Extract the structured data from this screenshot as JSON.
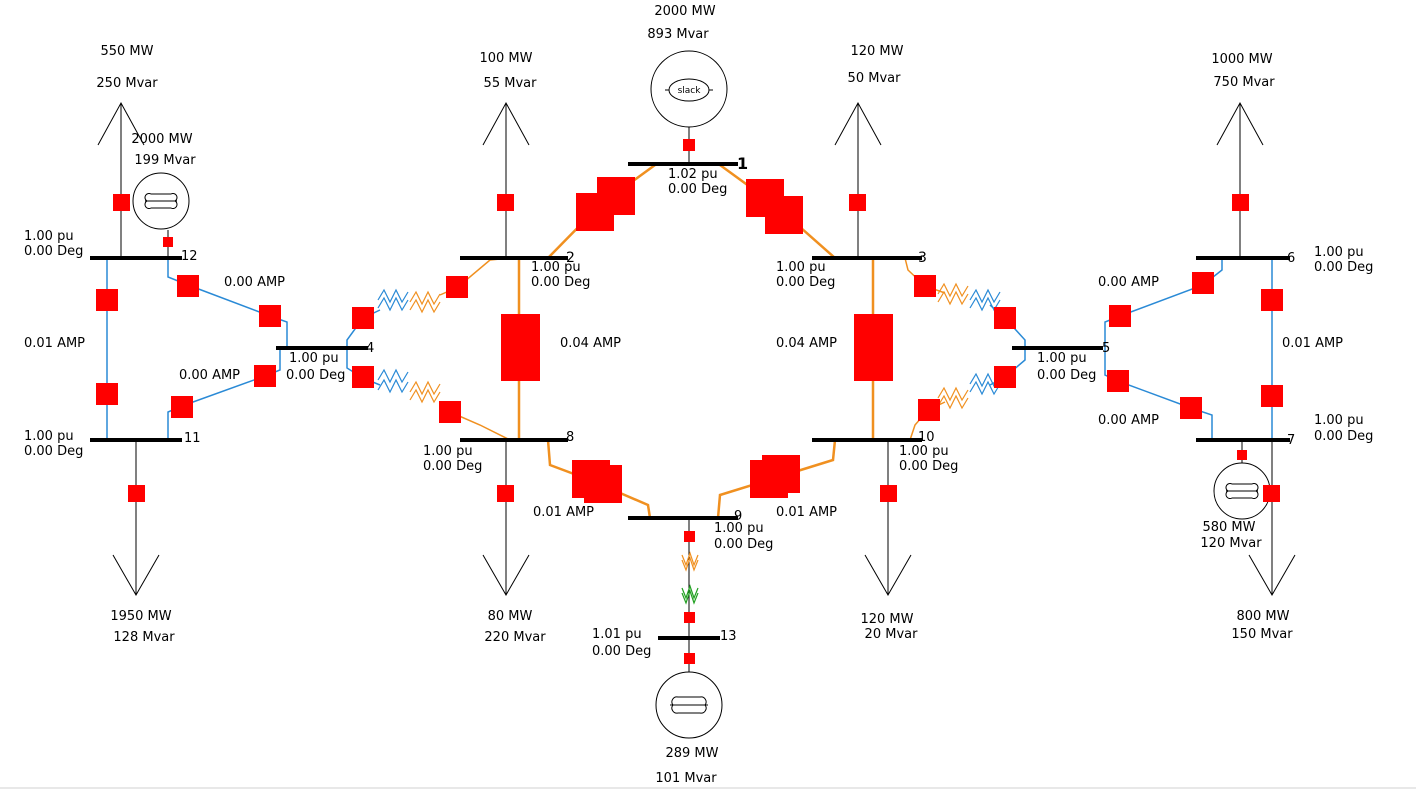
{
  "colors": {
    "bus": "#000000",
    "line_heavy": "#f09020",
    "line_light": "#2a8ad6",
    "breaker": "#ff0000",
    "transformer_green": "#20a020"
  },
  "buses": {
    "b1": {
      "num": "1",
      "pu": "1.02 pu",
      "deg": "0.00 Deg"
    },
    "b2": {
      "num": "2",
      "pu": "1.00 pu",
      "deg": "0.00 Deg"
    },
    "b3": {
      "num": "3",
      "pu": "1.00 pu",
      "deg": "0.00 Deg"
    },
    "b4": {
      "num": "4",
      "pu": "1.00 pu",
      "deg": "0.00 Deg"
    },
    "b5": {
      "num": "5",
      "pu": "1.00 pu",
      "deg": "0.00 Deg"
    },
    "b6": {
      "num": "6",
      "pu": "1.00 pu",
      "deg": "0.00 Deg"
    },
    "b7": {
      "num": "7",
      "pu": "1.00 pu",
      "deg": "0.00 Deg"
    },
    "b8": {
      "num": "8",
      "pu": "1.00 pu",
      "deg": "0.00 Deg"
    },
    "b9": {
      "num": "9",
      "pu": "1.00 pu",
      "deg": "0.00 Deg"
    },
    "b10": {
      "num": "10",
      "pu": "1.00 pu",
      "deg": "0.00 Deg"
    },
    "b11": {
      "num": "11",
      "pu": "1.00 pu",
      "deg": "0.00 Deg"
    },
    "b12": {
      "num": "12",
      "pu": "1.00 pu",
      "deg": "0.00 Deg"
    },
    "b13": {
      "num": "13",
      "pu": "1.01 pu",
      "deg": "0.00 Deg"
    }
  },
  "loads": {
    "l12": {
      "mw": "550 MW",
      "mvar": "250 Mvar"
    },
    "l2": {
      "mw": "100 MW",
      "mvar": "55 Mvar"
    },
    "l3": {
      "mw": "120 MW",
      "mvar": "50 Mvar"
    },
    "l6": {
      "mw": "1000 MW",
      "mvar": "750 Mvar"
    },
    "l11": {
      "mw": "1950 MW",
      "mvar": "128 Mvar"
    },
    "l8": {
      "mw": "80 MW",
      "mvar": "220 Mvar"
    },
    "l10": {
      "mw": "120 MW",
      "mvar": "20 Mvar"
    },
    "l7": {
      "mw": "800 MW",
      "mvar": "150 Mvar"
    }
  },
  "generators": {
    "g1": {
      "mw": "2000 MW",
      "mvar": "893 Mvar",
      "label": "slack"
    },
    "g12": {
      "mw": "2000 MW",
      "mvar": "199 Mvar"
    },
    "g7": {
      "mw": "580 MW",
      "mvar": "120 Mvar"
    },
    "g13": {
      "mw": "289 MW",
      "mvar": "101 Mvar"
    }
  },
  "flows": {
    "f_12_4": "0.00 AMP",
    "f_12_11": "0.01 AMP",
    "f_11_4": "0.00 AMP",
    "f_2_8": "0.04 AMP",
    "f_3_10": "0.04 AMP",
    "f_8_9": "0.01 AMP",
    "f_9_10": "0.01 AMP",
    "f_5_6": "0.00 AMP",
    "f_5_7": "0.00 AMP",
    "f_6_7": "0.01 AMP"
  }
}
